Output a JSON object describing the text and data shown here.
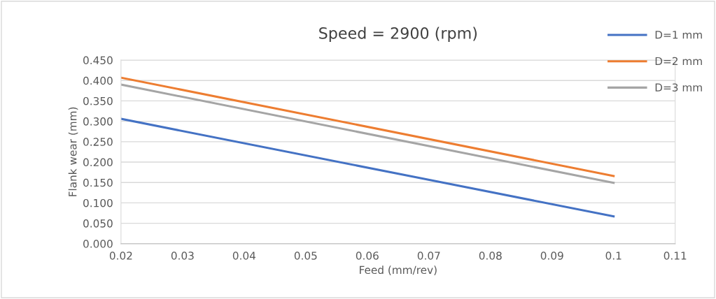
{
  "chart_data": {
    "type": "line",
    "title": "Speed = 2900 (rpm)",
    "xlabel": "Feed (mm/rev)",
    "ylabel": "Flank wear (mm)",
    "x": [
      0.02,
      0.1
    ],
    "series": [
      {
        "name": "D=1 mm",
        "color": "#4472c4",
        "values": [
          0.306,
          0.067
        ]
      },
      {
        "name": "D=2 mm",
        "color": "#ed7d31",
        "values": [
          0.407,
          0.166
        ]
      },
      {
        "name": "D=3 mm",
        "color": "#a5a5a5",
        "values": [
          0.39,
          0.149
        ]
      }
    ],
    "xlim": [
      0.02,
      0.11
    ],
    "xticks": [
      {
        "value": 0.02,
        "label": "0.02"
      },
      {
        "value": 0.03,
        "label": "0.03"
      },
      {
        "value": 0.04,
        "label": "0.04"
      },
      {
        "value": 0.05,
        "label": "0.05"
      },
      {
        "value": 0.06,
        "label": "0.06"
      },
      {
        "value": 0.07,
        "label": "0.07"
      },
      {
        "value": 0.08,
        "label": "0.08"
      },
      {
        "value": 0.09,
        "label": "0.09"
      },
      {
        "value": 0.1,
        "label": "0.1"
      },
      {
        "value": 0.11,
        "label": "0.11"
      }
    ],
    "ylim": [
      0,
      0.45
    ],
    "yticks": [
      {
        "value": 0,
        "label": "0.000"
      },
      {
        "value": 0.05,
        "label": "0.050"
      },
      {
        "value": 0.1,
        "label": "0.100"
      },
      {
        "value": 0.15,
        "label": "0.150"
      },
      {
        "value": 0.2,
        "label": "0.200"
      },
      {
        "value": 0.25,
        "label": "0.250"
      },
      {
        "value": 0.3,
        "label": "0.300"
      },
      {
        "value": 0.35,
        "label": "0.350"
      },
      {
        "value": 0.4,
        "label": "0.400"
      },
      {
        "value": 0.45,
        "label": "0.450"
      }
    ],
    "grid": "y",
    "legend": "top right",
    "marker": "none",
    "line_style": "solid"
  }
}
